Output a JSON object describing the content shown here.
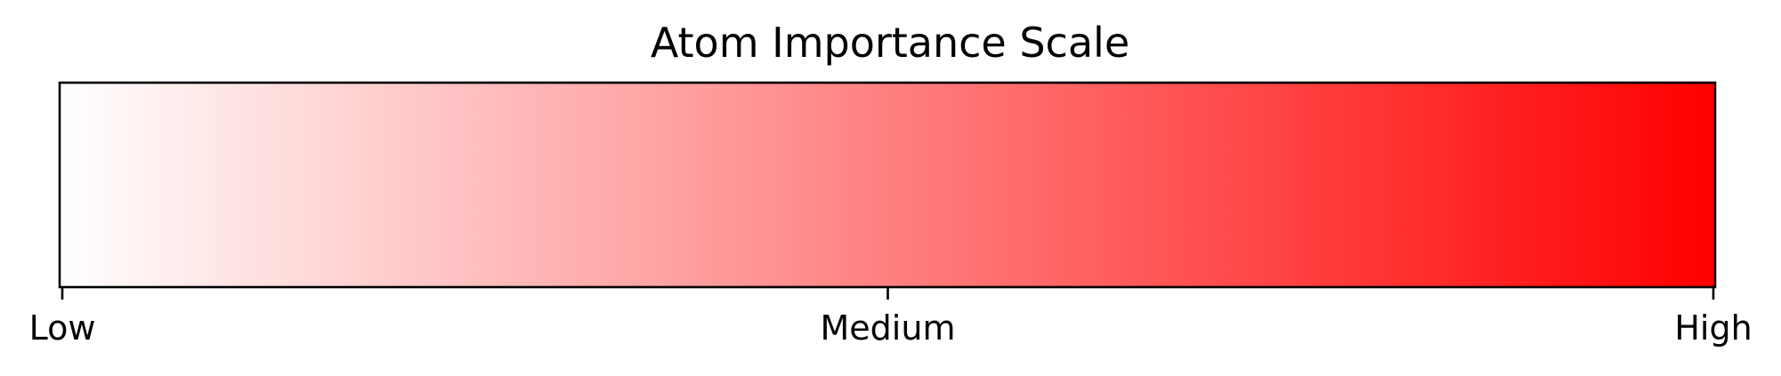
{
  "chart_data": {
    "type": "heatmap",
    "title": "Atom Importance Scale",
    "xlabel": "",
    "ylabel": "",
    "colormap": {
      "name": "white-to-red",
      "low_color": "#ffffff",
      "high_color": "#ff0000"
    },
    "xlim": [
      0,
      1
    ],
    "ticks": [
      {
        "value": 0,
        "label": "Low"
      },
      {
        "value": 0.5,
        "label": "Medium"
      },
      {
        "value": 1,
        "label": "High"
      }
    ],
    "grid": false,
    "legend": "none"
  }
}
